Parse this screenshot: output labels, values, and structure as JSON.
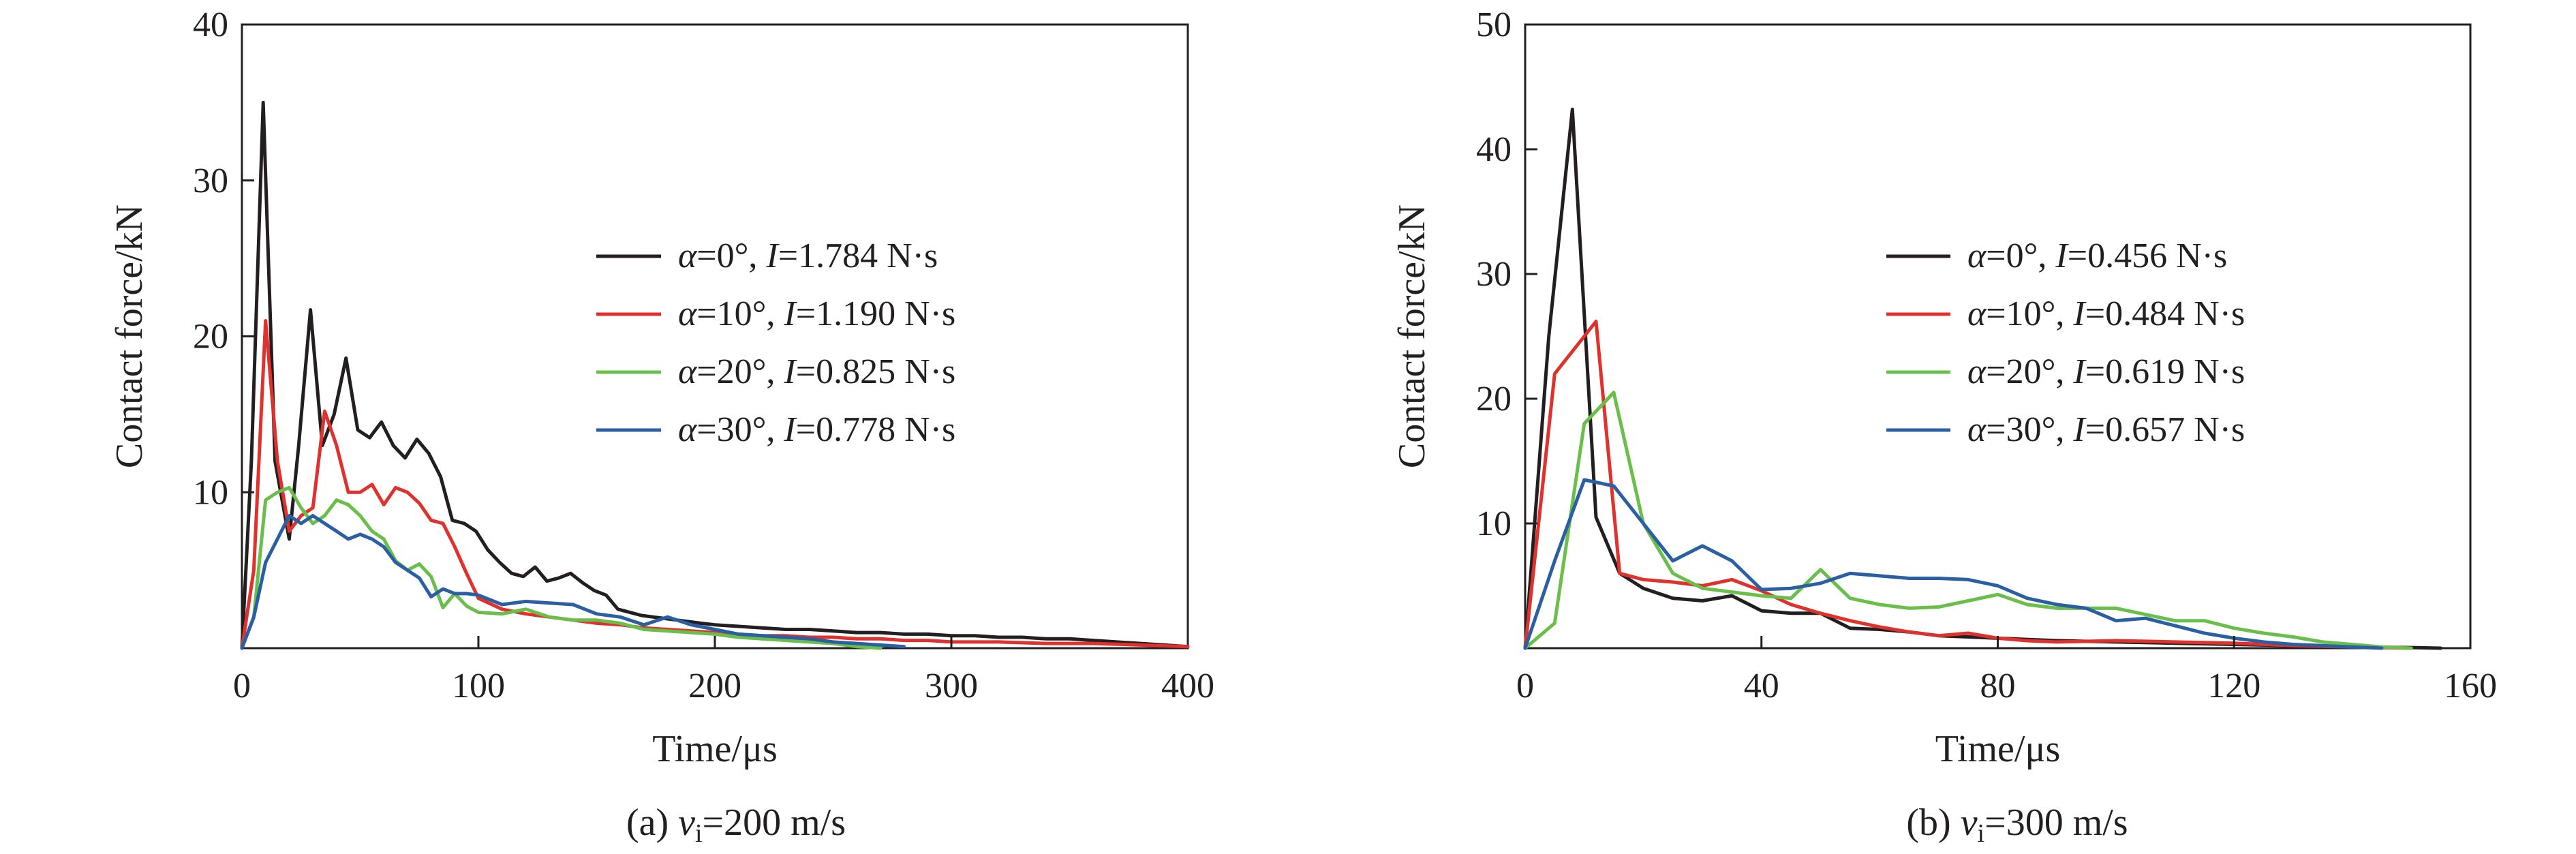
{
  "chart_data": [
    {
      "type": "line",
      "caption": {
        "prefix": "(a) ",
        "var": "v",
        "sub": "i",
        "suffix": "=200 m/s"
      },
      "ylabel": "Contact force/kN",
      "xlabel": "Time/μs",
      "xlim": [
        0,
        400
      ],
      "ylim": [
        0,
        40
      ],
      "xticks": [
        0,
        100,
        200,
        300,
        400
      ],
      "yticks": [
        10,
        20,
        30,
        40
      ],
      "origin_label": "0",
      "legend_position": "upper-right",
      "series": [
        {
          "name": "α=0°, I=1.784 N·s",
          "alpha": "0°",
          "impulse": "1.784 N·s",
          "color": "#231f20",
          "x": [
            0,
            4,
            9,
            14,
            20,
            24,
            29,
            34,
            39,
            44,
            49,
            54,
            59,
            64,
            69,
            74,
            79,
            84,
            89,
            94,
            99,
            104,
            109,
            114,
            119,
            124,
            129,
            134,
            139,
            144,
            149,
            154,
            159,
            164,
            169,
            174,
            179,
            184,
            189,
            194,
            200,
            210,
            220,
            230,
            240,
            250,
            260,
            270,
            280,
            290,
            300,
            310,
            320,
            330,
            340,
            350,
            360,
            370,
            380,
            390,
            400
          ],
          "y": [
            0,
            12,
            35,
            12,
            7,
            13,
            21.7,
            13,
            15,
            18.6,
            14,
            13.5,
            14.5,
            13,
            12.2,
            13.4,
            12.5,
            11,
            8.2,
            8,
            7.5,
            6.3,
            5.5,
            4.8,
            4.6,
            5.2,
            4.3,
            4.5,
            4.8,
            4.2,
            3.7,
            3.4,
            2.5,
            2.3,
            2.1,
            2.0,
            1.9,
            1.8,
            1.7,
            1.6,
            1.5,
            1.4,
            1.3,
            1.2,
            1.2,
            1.1,
            1.0,
            1.0,
            0.9,
            0.9,
            0.8,
            0.8,
            0.7,
            0.7,
            0.6,
            0.6,
            0.5,
            0.4,
            0.3,
            0.2,
            0.1
          ]
        },
        {
          "name": "α=10°, I=1.190 N·s",
          "alpha": "10°",
          "impulse": "1.190 N·s",
          "color": "#e1312d",
          "x": [
            0,
            5,
            10,
            15,
            20,
            25,
            30,
            35,
            40,
            45,
            50,
            55,
            60,
            65,
            70,
            75,
            80,
            85,
            90,
            95,
            100,
            110,
            120,
            130,
            140,
            150,
            160,
            170,
            180,
            190,
            200,
            210,
            220,
            230,
            240,
            250,
            260,
            270,
            280,
            290,
            300,
            320,
            340,
            360,
            380,
            400
          ],
          "y": [
            0,
            5,
            21,
            12,
            7.5,
            8.5,
            9,
            15.2,
            13,
            10,
            10,
            10.5,
            9.2,
            10.3,
            10,
            9.3,
            8.2,
            8,
            6.5,
            4.8,
            3.2,
            2.5,
            2.2,
            2.0,
            1.8,
            1.6,
            1.5,
            1.3,
            1.2,
            1.1,
            1.0,
            0.9,
            0.8,
            0.8,
            0.7,
            0.7,
            0.6,
            0.6,
            0.5,
            0.5,
            0.4,
            0.4,
            0.3,
            0.3,
            0.2,
            0.1
          ]
        },
        {
          "name": "α=20°, I=0.825 N·s",
          "alpha": "20°",
          "impulse": "0.825 N·s",
          "color": "#6abf4b",
          "x": [
            0,
            5,
            10,
            15,
            20,
            25,
            30,
            35,
            40,
            45,
            50,
            55,
            60,
            65,
            70,
            75,
            80,
            85,
            90,
            95,
            100,
            110,
            120,
            130,
            140,
            150,
            160,
            170,
            180,
            190,
            200,
            210,
            220,
            230,
            240,
            250,
            260,
            270
          ],
          "y": [
            0,
            2,
            9.5,
            10,
            10.3,
            9,
            8,
            8.5,
            9.5,
            9.2,
            8.5,
            7.5,
            7,
            5.6,
            5,
            5.4,
            4.6,
            2.6,
            3.5,
            2.7,
            2.3,
            2.2,
            2.5,
            2.0,
            1.8,
            1.8,
            1.6,
            1.2,
            1.1,
            1.0,
            0.9,
            0.7,
            0.6,
            0.5,
            0.4,
            0.3,
            0.1,
            0
          ]
        },
        {
          "name": "α=30°, I=0.778 N·s",
          "alpha": "30°",
          "impulse": "0.778 N·s",
          "color": "#2b5fa4",
          "x": [
            0,
            5,
            10,
            15,
            20,
            25,
            30,
            35,
            40,
            45,
            50,
            55,
            60,
            65,
            70,
            75,
            80,
            85,
            90,
            95,
            100,
            110,
            120,
            130,
            140,
            150,
            160,
            170,
            180,
            190,
            200,
            210,
            220,
            230,
            240,
            250,
            260,
            270,
            280
          ],
          "y": [
            0,
            2,
            5.5,
            7,
            8.5,
            8,
            8.5,
            8,
            7.5,
            7,
            7.3,
            7,
            6.5,
            5.5,
            5,
            4.5,
            3.3,
            3.8,
            3.5,
            3.5,
            3.4,
            2.8,
            3.0,
            2.9,
            2.8,
            2.2,
            2.0,
            1.5,
            2.0,
            1.5,
            1.2,
            0.9,
            0.8,
            0.7,
            0.6,
            0.4,
            0.3,
            0.2,
            0.1
          ]
        }
      ]
    },
    {
      "type": "line",
      "caption": {
        "prefix": "(b) ",
        "var": "v",
        "sub": "i",
        "suffix": "=300 m/s"
      },
      "ylabel": "Contact force/kN",
      "xlabel": "Time/μs",
      "xlim": [
        0,
        160
      ],
      "ylim": [
        0,
        50
      ],
      "xticks": [
        0,
        40,
        80,
        120,
        160
      ],
      "yticks": [
        10,
        20,
        30,
        40,
        50
      ],
      "origin_label": "0",
      "legend_position": "upper-right",
      "series": [
        {
          "name": "α=0°, I=0.456 N·s",
          "alpha": "0°",
          "impulse": "0.456 N·s",
          "color": "#231f20",
          "x": [
            0,
            4,
            8,
            12,
            16,
            20,
            25,
            30,
            35,
            40,
            45,
            50,
            55,
            60,
            65,
            70,
            75,
            80,
            90,
            100,
            110,
            120,
            130,
            140,
            150,
            155
          ],
          "y": [
            0,
            25,
            43.2,
            10.5,
            6,
            4.8,
            4,
            3.8,
            4.2,
            3,
            2.8,
            2.8,
            1.6,
            1.5,
            1.3,
            1.0,
            0.9,
            0.8,
            0.6,
            0.5,
            0.4,
            0.3,
            0.2,
            0.1,
            0.05,
            0
          ]
        },
        {
          "name": "α=10°, I=0.484 N·s",
          "alpha": "10°",
          "impulse": "0.484 N·s",
          "color": "#e1312d",
          "x": [
            0,
            5,
            10,
            12,
            16,
            20,
            25,
            30,
            35,
            40,
            45,
            50,
            55,
            60,
            65,
            70,
            75,
            80,
            85,
            90,
            100,
            110,
            120,
            130,
            140,
            150
          ],
          "y": [
            0,
            22,
            25,
            26.2,
            6,
            5.5,
            5.3,
            5,
            5.5,
            4.6,
            3.5,
            2.8,
            2.2,
            1.7,
            1.3,
            1.0,
            1.2,
            0.8,
            0.6,
            0.5,
            0.6,
            0.5,
            0.4,
            0.2,
            0.1,
            0
          ]
        },
        {
          "name": "α=20°, I=0.619 N·s",
          "alpha": "20°",
          "impulse": "0.619 N·s",
          "color": "#6abf4b",
          "x": [
            0,
            5,
            10,
            15,
            20,
            25,
            30,
            35,
            40,
            45,
            50,
            55,
            60,
            65,
            70,
            75,
            80,
            85,
            90,
            95,
            100,
            105,
            110,
            115,
            120,
            125,
            130,
            135,
            140,
            145,
            150
          ],
          "y": [
            0,
            2,
            18,
            20.5,
            10,
            6,
            4.8,
            4.5,
            4.2,
            4,
            6.3,
            4,
            3.5,
            3.2,
            3.3,
            3.8,
            4.3,
            3.5,
            3.2,
            3.2,
            3.2,
            2.7,
            2.2,
            2.2,
            1.6,
            1.2,
            0.9,
            0.5,
            0.3,
            0.1,
            0
          ]
        },
        {
          "name": "α=30°, I=0.657 N·s",
          "alpha": "30°",
          "impulse": "0.657 N·s",
          "color": "#2b5fa4",
          "x": [
            0,
            5,
            10,
            15,
            20,
            25,
            30,
            35,
            40,
            45,
            50,
            55,
            60,
            65,
            70,
            75,
            80,
            85,
            90,
            95,
            100,
            105,
            110,
            115,
            120,
            125,
            130,
            135,
            140,
            145
          ],
          "y": [
            0,
            7,
            13.5,
            13,
            10,
            7,
            8.2,
            7,
            4.7,
            4.8,
            5.2,
            6,
            5.8,
            5.6,
            5.6,
            5.5,
            5,
            4,
            3.5,
            3.2,
            2.2,
            2.4,
            1.8,
            1.2,
            0.8,
            0.5,
            0.3,
            0.2,
            0.1,
            0
          ]
        }
      ]
    }
  ]
}
